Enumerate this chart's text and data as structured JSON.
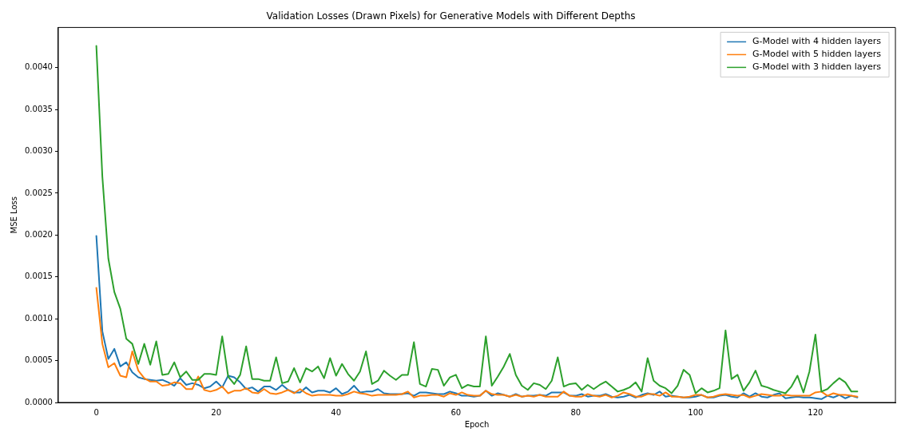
{
  "chart_data": {
    "type": "line",
    "title": "Validation Losses (Drawn Pixels) for Generative Models with Different Depths",
    "xlabel": "Epoch",
    "ylabel": "MSE Loss",
    "x": [
      0,
      1,
      2,
      3,
      4,
      5,
      6,
      7,
      8,
      9,
      10,
      11,
      12,
      13,
      14,
      15,
      16,
      17,
      18,
      19,
      20,
      21,
      22,
      23,
      24,
      25,
      26,
      27,
      28,
      29,
      30,
      31,
      32,
      33,
      34,
      35,
      36,
      37,
      38,
      39,
      40,
      41,
      42,
      43,
      44,
      45,
      46,
      47,
      48,
      49,
      50,
      51,
      52,
      53,
      54,
      55,
      56,
      57,
      58,
      59,
      60,
      61,
      62,
      63,
      64,
      65,
      66,
      67,
      68,
      69,
      70,
      71,
      72,
      73,
      74,
      75,
      76,
      77,
      78,
      79,
      80,
      81,
      82,
      83,
      84,
      85,
      86,
      87,
      88,
      89,
      90,
      91,
      92,
      93,
      94,
      95,
      96,
      97,
      98,
      99,
      100,
      101,
      102,
      103,
      104,
      105,
      106,
      107,
      108,
      109,
      110,
      111,
      112,
      113,
      114,
      115,
      116,
      117,
      118,
      119,
      120,
      121,
      122,
      123,
      124,
      125,
      126,
      127
    ],
    "series": [
      {
        "name": "G-Model with 4 hidden layers",
        "color": "#1f77b4",
        "values": [
          0.00199,
          0.00085,
          0.00052,
          0.00064,
          0.00043,
          0.00048,
          0.00036,
          0.0003,
          0.00028,
          0.00027,
          0.00026,
          0.00027,
          0.00024,
          0.0002,
          0.00029,
          0.00021,
          0.00023,
          0.00021,
          0.00017,
          0.00019,
          0.00025,
          0.00018,
          0.00032,
          0.0003,
          0.00024,
          0.00016,
          0.00018,
          0.00013,
          0.00019,
          0.00019,
          0.00015,
          0.00021,
          0.00015,
          0.00012,
          0.00012,
          0.00018,
          0.00012,
          0.00014,
          0.00014,
          0.00012,
          0.00017,
          0.0001,
          0.00013,
          0.0002,
          0.00012,
          0.00013,
          0.00013,
          0.00016,
          0.00011,
          0.0001,
          0.0001,
          0.0001,
          0.00011,
          8e-05,
          0.00012,
          0.00012,
          0.00011,
          0.0001,
          0.0001,
          0.00013,
          0.00011,
          8e-05,
          8e-05,
          7e-05,
          8e-05,
          0.00014,
          8e-05,
          0.00011,
          9e-05,
          7e-05,
          0.0001,
          7e-05,
          8e-05,
          8e-05,
          9e-05,
          8e-05,
          0.00012,
          0.00012,
          0.00012,
          8e-05,
          8e-05,
          0.0001,
          7e-05,
          8e-05,
          8e-05,
          0.0001,
          7e-05,
          6e-05,
          7e-05,
          9e-05,
          6e-05,
          9e-05,
          0.00011,
          9e-05,
          0.00013,
          7e-05,
          8e-05,
          7e-05,
          6e-05,
          6e-05,
          7e-05,
          9e-05,
          6e-05,
          6e-05,
          8e-05,
          9e-05,
          7e-05,
          6e-05,
          0.00011,
          7e-05,
          0.00011,
          7e-05,
          6e-05,
          9e-05,
          0.00011,
          5e-05,
          6e-05,
          7e-05,
          6e-05,
          6e-05,
          5e-05,
          4e-05,
          8e-05,
          6e-05,
          9e-05,
          5e-05,
          8e-05,
          6e-05
        ]
      },
      {
        "name": "G-Model with 5 hidden layers",
        "color": "#ff7f0e",
        "values": [
          0.00137,
          0.0007,
          0.00042,
          0.00047,
          0.00032,
          0.0003,
          0.00061,
          0.00038,
          0.00029,
          0.00025,
          0.00025,
          0.0002,
          0.00021,
          0.00024,
          0.00023,
          0.00016,
          0.00016,
          0.00031,
          0.00015,
          0.00013,
          0.00015,
          0.00019,
          0.00011,
          0.00014,
          0.00014,
          0.00017,
          0.00012,
          0.00011,
          0.00016,
          0.00011,
          0.0001,
          0.00012,
          0.00015,
          0.00011,
          0.00016,
          0.00011,
          8e-05,
          9e-05,
          9e-05,
          9e-05,
          8e-05,
          8e-05,
          0.0001,
          0.00013,
          0.00011,
          0.0001,
          8e-05,
          9e-05,
          9e-05,
          9e-05,
          9e-05,
          0.0001,
          0.00013,
          6e-05,
          8e-05,
          8e-05,
          9e-05,
          9e-05,
          7e-05,
          0.00011,
          9e-05,
          0.00012,
          9e-05,
          8e-05,
          8e-05,
          0.00014,
          0.0001,
          9e-05,
          9e-05,
          7e-05,
          9e-05,
          7e-05,
          8e-05,
          7e-05,
          9e-05,
          7e-05,
          7e-05,
          7e-05,
          0.00013,
          8e-05,
          7e-05,
          7e-05,
          0.0001,
          8e-05,
          7e-05,
          9e-05,
          6e-05,
          8e-05,
          0.00012,
          0.0001,
          7e-05,
          7e-05,
          0.0001,
          0.0001,
          8e-05,
          0.00012,
          7e-05,
          7e-05,
          6e-05,
          7e-05,
          9e-05,
          9e-05,
          6e-05,
          7e-05,
          9e-05,
          0.0001,
          9e-05,
          8e-05,
          9e-05,
          6e-05,
          8e-05,
          0.0001,
          9e-05,
          8e-05,
          8e-05,
          9e-05,
          8e-05,
          8e-05,
          8e-05,
          8e-05,
          0.00012,
          0.00013,
          8e-05,
          0.00011,
          9e-05,
          9e-05,
          8e-05,
          7e-05
        ]
      },
      {
        "name": "G-Model with 3 hidden layers",
        "color": "#2ca02c",
        "values": [
          0.00426,
          0.0027,
          0.00172,
          0.00132,
          0.00112,
          0.00076,
          0.0007,
          0.00046,
          0.0007,
          0.00045,
          0.00073,
          0.00033,
          0.00034,
          0.00048,
          0.0003,
          0.00037,
          0.00027,
          0.00027,
          0.00034,
          0.00034,
          0.00033,
          0.00079,
          0.00031,
          0.00022,
          0.00033,
          0.00067,
          0.00028,
          0.00028,
          0.00026,
          0.00026,
          0.00054,
          0.00023,
          0.00025,
          0.00041,
          0.00024,
          0.00041,
          0.00037,
          0.00043,
          0.00029,
          0.00053,
          0.00032,
          0.00046,
          0.00034,
          0.00026,
          0.00037,
          0.00061,
          0.00022,
          0.00026,
          0.00038,
          0.00032,
          0.00027,
          0.00033,
          0.00033,
          0.00072,
          0.00022,
          0.00019,
          0.0004,
          0.00039,
          0.0002,
          0.0003,
          0.00033,
          0.00017,
          0.00021,
          0.00019,
          0.00019,
          0.00079,
          0.0002,
          0.00031,
          0.00043,
          0.00058,
          0.00033,
          0.0002,
          0.00015,
          0.00023,
          0.00021,
          0.00016,
          0.00026,
          0.00054,
          0.00019,
          0.00022,
          0.00023,
          0.00015,
          0.00021,
          0.00016,
          0.00021,
          0.00025,
          0.00019,
          0.00013,
          0.00015,
          0.00018,
          0.00024,
          0.00013,
          0.00053,
          0.00026,
          0.0002,
          0.00017,
          0.00011,
          0.0002,
          0.00039,
          0.00033,
          0.00011,
          0.00017,
          0.00012,
          0.00014,
          0.00017,
          0.00086,
          0.00028,
          0.00033,
          0.00014,
          0.00024,
          0.00038,
          0.0002,
          0.00018,
          0.00015,
          0.00013,
          0.00011,
          0.00019,
          0.00032,
          0.00012,
          0.00037,
          0.00081,
          0.00013,
          0.00016,
          0.00023,
          0.00029,
          0.00024,
          0.00013,
          0.00013
        ]
      }
    ],
    "xlim": [
      -6.35,
      133.35
    ],
    "xticks": [
      0,
      20,
      40,
      60,
      80,
      100,
      120
    ],
    "ylim": [
      0,
      0.00448
    ],
    "yticks": [
      {
        "value": 0,
        "label": "0.0000"
      },
      {
        "value": 0.0005,
        "label": "0.0005"
      },
      {
        "value": 0.001,
        "label": "0.0010"
      },
      {
        "value": 0.0015,
        "label": "0.0015"
      },
      {
        "value": 0.002,
        "label": "0.0020"
      },
      {
        "value": 0.0025,
        "label": "0.0025"
      },
      {
        "value": 0.003,
        "label": "0.0030"
      },
      {
        "value": 0.0035,
        "label": "0.0035"
      },
      {
        "value": 0.004,
        "label": "0.0040"
      }
    ],
    "grid": false,
    "legend": "top right",
    "marker": "none",
    "line_style": "solid"
  }
}
